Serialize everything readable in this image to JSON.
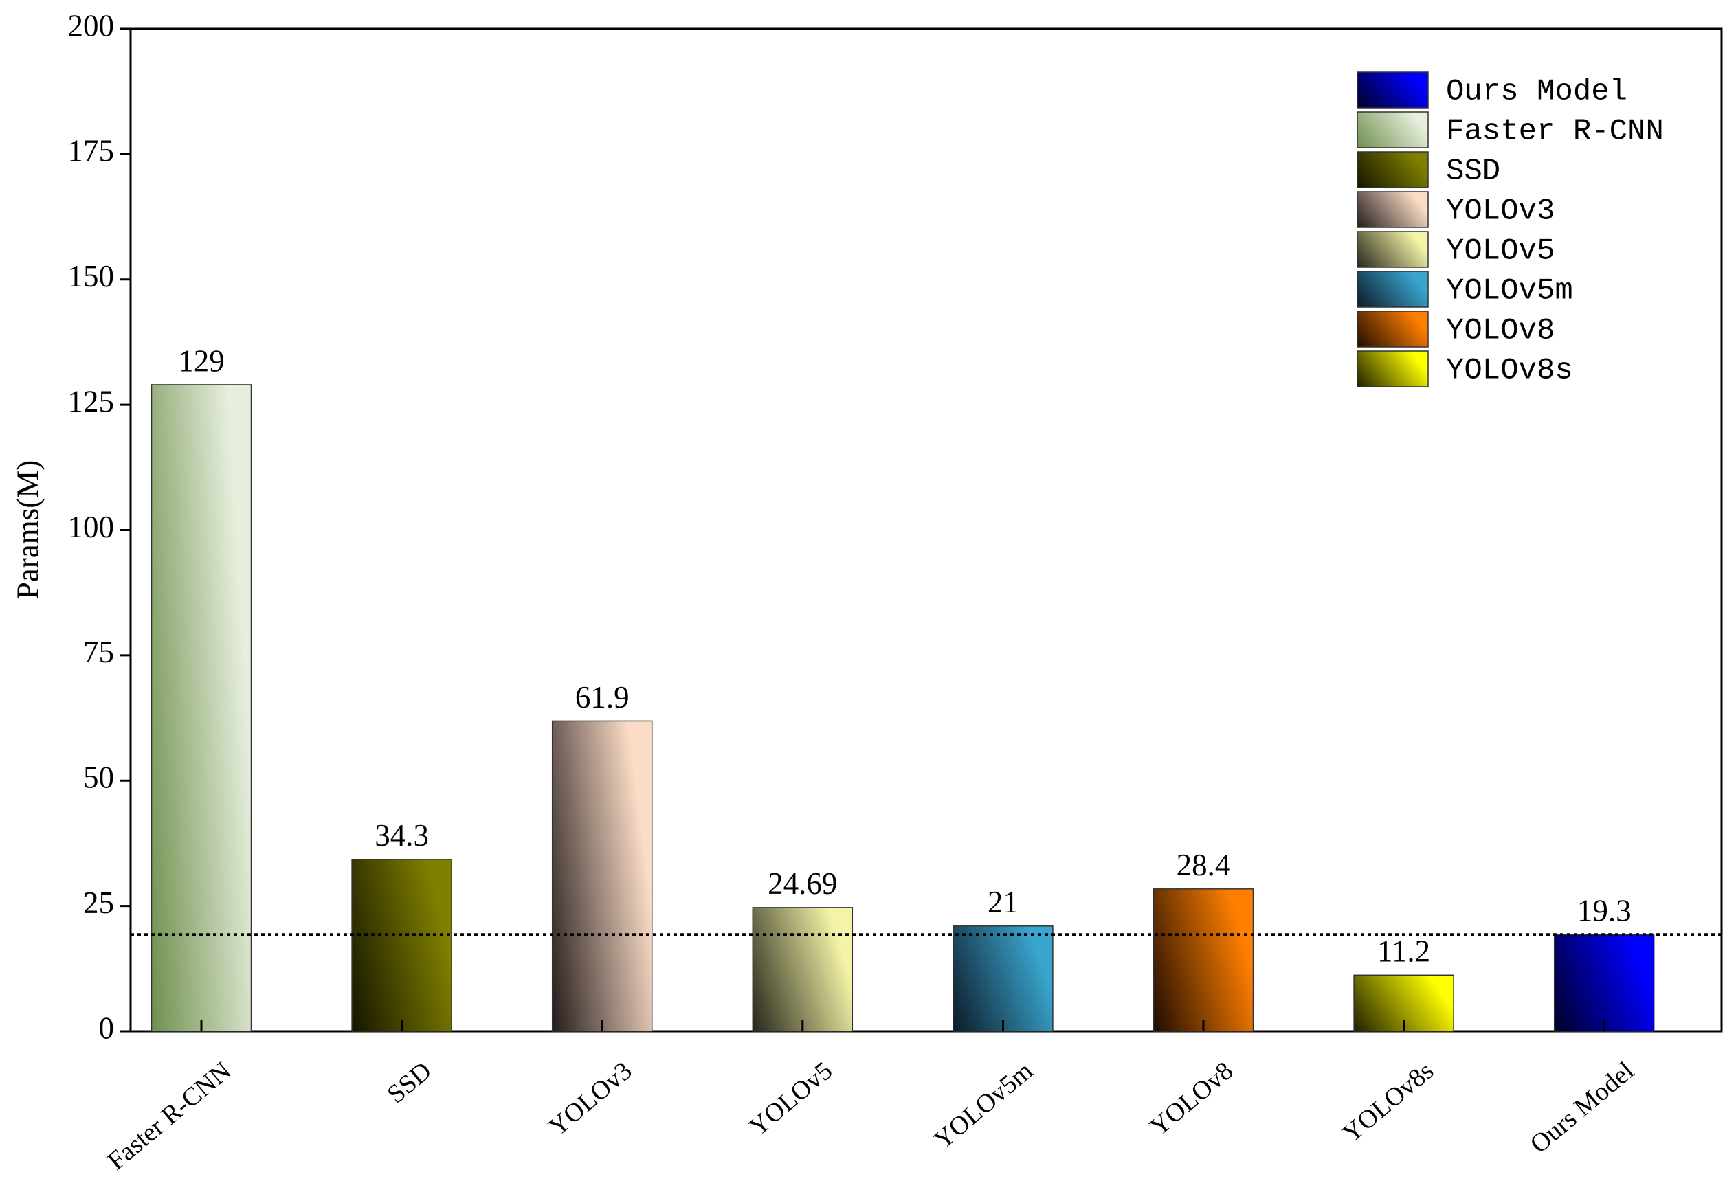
{
  "chart_data": {
    "type": "bar",
    "y_label": "Params(M)",
    "categories": [
      "Faster R-CNN",
      "SSD",
      "YOLOv3",
      "YOLOv5",
      "YOLOv5m",
      "YOLOv8",
      "YOLOv8s",
      "Ours Model"
    ],
    "values": [
      129,
      34.3,
      61.9,
      24.69,
      21,
      28.4,
      11.2,
      19.3
    ],
    "colors": [
      [
        "#6f8f4e",
        "#e6eedc"
      ],
      [
        "#151500",
        "#7f7f00"
      ],
      [
        "#241c1c",
        "#fbdcc6"
      ],
      [
        "#26261a",
        "#f4f4a8"
      ],
      [
        "#0c1a26",
        "#3aa6d0"
      ],
      [
        "#1e0c00",
        "#ff7f00"
      ],
      [
        "#1e1e00",
        "#ffff00"
      ],
      [
        "#000028",
        "#0000ff"
      ]
    ],
    "legend": [
      "Ours Model",
      "Faster R-CNN",
      "SSD",
      "YOLOv3",
      "YOLOv5",
      "YOLOv5m",
      "YOLOv8",
      "YOLOv8s"
    ],
    "ylim": [
      0,
      200
    ],
    "yticks": [
      0,
      25,
      50,
      75,
      100,
      125,
      150,
      175,
      200
    ]
  }
}
